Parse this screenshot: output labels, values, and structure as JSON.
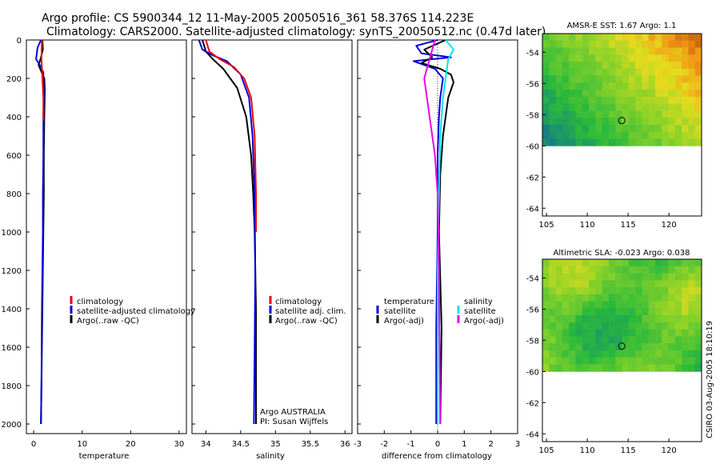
{
  "header": {
    "line1": "Argo profile: CS 5900344_12 11-May-2005 20050516_361 58.376S 114.223E",
    "line2": "Climatology: CARS2000. Satellite-adjusted climatology: synTS_20050512.nc (0.47d later)"
  },
  "colors": {
    "red": "#ee0000",
    "blue": "#0000dd",
    "black": "#000000",
    "cyan": "#00e5ee",
    "magenta": "#ee00ee"
  },
  "depth_axis": {
    "ylim": [
      0,
      2050
    ],
    "ticks": [
      0,
      200,
      400,
      600,
      800,
      1000,
      1200,
      1400,
      1600,
      1800,
      2000
    ]
  },
  "credit": {
    "line1": "Argo AUSTRALIA",
    "line2": "PI: Susan Wijffels"
  },
  "stamp": "CSIRO 03-Aug-2005 18:10:19",
  "chart_data": [
    {
      "type": "line",
      "id": "temperature",
      "xlabel": "temperature",
      "ylabel": "",
      "xlim": [
        -1.5,
        31.5
      ],
      "ylim": [
        0,
        2050
      ],
      "xticks": [
        0,
        10,
        20,
        30
      ],
      "legend": [
        "climatology",
        "satellite-adjusted climatology",
        "Argo(..raw -QC)"
      ],
      "series": [
        {
          "name": "Argo(..raw -QC)",
          "color": "black",
          "points": [
            [
              1.8,
              0
            ],
            [
              1.9,
              50
            ],
            [
              1.4,
              100
            ],
            [
              1.0,
              130
            ],
            [
              1.5,
              160
            ],
            [
              2.2,
              200
            ],
            [
              2.3,
              260
            ],
            [
              2.2,
              400
            ],
            [
              2.1,
              600
            ],
            [
              2.1,
              800
            ],
            [
              2.0,
              1000
            ],
            [
              1.8,
              1400
            ],
            [
              1.6,
              1800
            ],
            [
              1.5,
              2000
            ]
          ]
        },
        {
          "name": "satellite-adjusted climatology",
          "color": "blue",
          "points": [
            [
              1.5,
              0
            ],
            [
              0.8,
              40
            ],
            [
              0.5,
              100
            ],
            [
              1.5,
              140
            ],
            [
              2.0,
              170
            ],
            [
              2.0,
              200
            ],
            [
              2.1,
              300
            ],
            [
              2.0,
              400
            ],
            [
              2.0,
              600
            ],
            [
              1.9,
              800
            ],
            [
              1.9,
              1000
            ],
            [
              1.7,
              1400
            ],
            [
              1.6,
              1800
            ],
            [
              1.5,
              2000
            ]
          ]
        },
        {
          "name": "climatology",
          "color": "red",
          "points": [
            [
              1.7,
              0
            ],
            [
              1.6,
              100
            ],
            [
              1.8,
              200
            ],
            [
              2.0,
              300
            ],
            [
              2.0,
              420
            ]
          ]
        }
      ]
    },
    {
      "type": "line",
      "id": "salinity",
      "xlabel": "salinity",
      "ylabel": "",
      "xlim": [
        33.8,
        36.1
      ],
      "ylim": [
        0,
        2050
      ],
      "xticks": [
        34,
        34.5,
        35,
        35.5,
        36
      ],
      "legend": [
        "climatology",
        "satellite adj. clim.",
        "Argo(..raw -QC)"
      ],
      "series": [
        {
          "name": "Argo(..raw -QC)",
          "color": "black",
          "points": [
            [
              33.95,
              0
            ],
            [
              34.0,
              60
            ],
            [
              34.1,
              100
            ],
            [
              34.25,
              150
            ],
            [
              34.45,
              250
            ],
            [
              34.58,
              400
            ],
            [
              34.65,
              600
            ],
            [
              34.68,
              800
            ],
            [
              34.7,
              1000
            ],
            [
              34.72,
              1400
            ],
            [
              34.72,
              2000
            ]
          ]
        },
        {
          "name": "satellite adj. clim.",
          "color": "blue",
          "points": [
            [
              33.9,
              0
            ],
            [
              33.95,
              50
            ],
            [
              34.1,
              80
            ],
            [
              34.3,
              110
            ],
            [
              34.5,
              180
            ],
            [
              34.62,
              300
            ],
            [
              34.67,
              500
            ],
            [
              34.7,
              800
            ],
            [
              34.71,
              1200
            ],
            [
              34.7,
              1600
            ],
            [
              34.69,
              2000
            ]
          ]
        },
        {
          "name": "climatology",
          "color": "red",
          "points": [
            [
              34.0,
              0
            ],
            [
              34.05,
              60
            ],
            [
              34.2,
              100
            ],
            [
              34.4,
              140
            ],
            [
              34.55,
              200
            ],
            [
              34.65,
              300
            ],
            [
              34.7,
              500
            ],
            [
              34.72,
              800
            ],
            [
              34.72,
              1000
            ]
          ]
        }
      ]
    },
    {
      "type": "line",
      "id": "difference",
      "xlabel": "difference from climatology",
      "ylabel": "",
      "xlim": [
        -3,
        3
      ],
      "ylim": [
        0,
        2050
      ],
      "xticks": [
        -3,
        -2,
        -1,
        0,
        1,
        2,
        3
      ],
      "legend_left": [
        "temperature",
        "satellite",
        "Argo(-adj)"
      ],
      "legend_right": [
        "salinity",
        "satellite",
        "Argo(-adj)"
      ],
      "series": [
        {
          "name": "temperature satellite",
          "color": "blue",
          "points": [
            [
              0.0,
              0
            ],
            [
              -0.8,
              30
            ],
            [
              -0.6,
              70
            ],
            [
              0.5,
              90
            ],
            [
              -0.9,
              110
            ],
            [
              -0.1,
              150
            ],
            [
              0.2,
              200
            ],
            [
              0.1,
              300
            ],
            [
              0.05,
              400
            ],
            [
              0.0,
              600
            ],
            [
              0.0,
              1000
            ],
            [
              -0.05,
              1500
            ],
            [
              -0.05,
              2000
            ]
          ]
        },
        {
          "name": "temperature Argo(-adj)",
          "color": "black",
          "points": [
            [
              0.3,
              0
            ],
            [
              -0.5,
              50
            ],
            [
              -0.2,
              90
            ],
            [
              -0.6,
              120
            ],
            [
              0.1,
              150
            ],
            [
              0.5,
              180
            ],
            [
              0.6,
              220
            ],
            [
              0.4,
              300
            ],
            [
              0.3,
              400
            ],
            [
              0.2,
              500
            ],
            [
              0.1,
              700
            ],
            [
              0.05,
              1000
            ],
            [
              0.15,
              1500
            ],
            [
              0.1,
              2000
            ]
          ]
        },
        {
          "name": "salinity satellite",
          "color": "cyan",
          "points": [
            [
              0.3,
              0
            ],
            [
              0.6,
              50
            ],
            [
              0.4,
              100
            ],
            [
              0.3,
              200
            ],
            [
              0.2,
              300
            ],
            [
              0.1,
              500
            ],
            [
              0.05,
              800
            ],
            [
              0.0,
              1200
            ],
            [
              0.0,
              2000
            ]
          ]
        },
        {
          "name": "salinity Argo(-adj)",
          "color": "magenta",
          "points": [
            [
              -0.1,
              0
            ],
            [
              -0.3,
              100
            ],
            [
              -0.5,
              200
            ],
            [
              -0.3,
              400
            ],
            [
              -0.1,
              600
            ],
            [
              0.0,
              800
            ],
            [
              0.05,
              1200
            ],
            [
              0.1,
              2000
            ]
          ]
        }
      ]
    },
    {
      "type": "heatmap",
      "id": "sst-map",
      "title": "AMSR-E SST: 1.67 Argo: 1.1",
      "xlim": [
        104.5,
        124
      ],
      "ylim": [
        -64.5,
        -52.8
      ],
      "xticks": [
        105,
        110,
        115,
        120
      ],
      "yticks": [
        -54,
        -56,
        -58,
        -60,
        -62,
        -64
      ],
      "data_south_limit": -60,
      "argo_position": [
        114.223,
        -58.376
      ]
    },
    {
      "type": "heatmap",
      "id": "sla-map",
      "title": "Altimetric SLA: -0.023 Argo: 0.038",
      "xlim": [
        104.5,
        124
      ],
      "ylim": [
        -64.5,
        -52.8
      ],
      "xticks": [
        105,
        110,
        115,
        120
      ],
      "yticks": [
        -54,
        -56,
        -58,
        -60,
        -62,
        -64
      ],
      "data_south_limit": -60,
      "argo_position": [
        114.223,
        -58.376
      ]
    }
  ]
}
